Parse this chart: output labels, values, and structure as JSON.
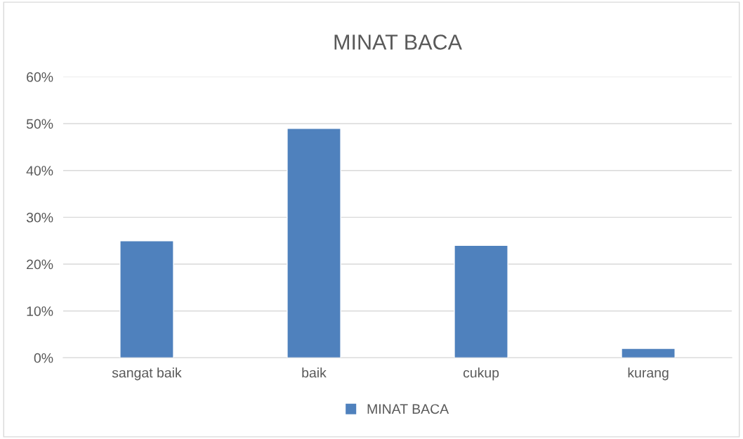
{
  "chart_data": {
    "type": "bar",
    "title": "MINAT BACA",
    "categories": [
      "sangat baik",
      "baik",
      "cukup",
      "kurang"
    ],
    "series": [
      {
        "name": "MINAT BACA",
        "color": "#4f81bd",
        "values": [
          25,
          49,
          24,
          2
        ]
      }
    ],
    "ylim": [
      0,
      60
    ],
    "yticks": [
      {
        "value": 0,
        "label": "0%"
      },
      {
        "value": 10,
        "label": "10%"
      },
      {
        "value": 20,
        "label": "20%"
      },
      {
        "value": 30,
        "label": "30%"
      },
      {
        "value": 40,
        "label": "40%"
      },
      {
        "value": 50,
        "label": "50%"
      },
      {
        "value": 60,
        "label": "60%"
      }
    ],
    "grid": "y",
    "legend": "bottom"
  }
}
